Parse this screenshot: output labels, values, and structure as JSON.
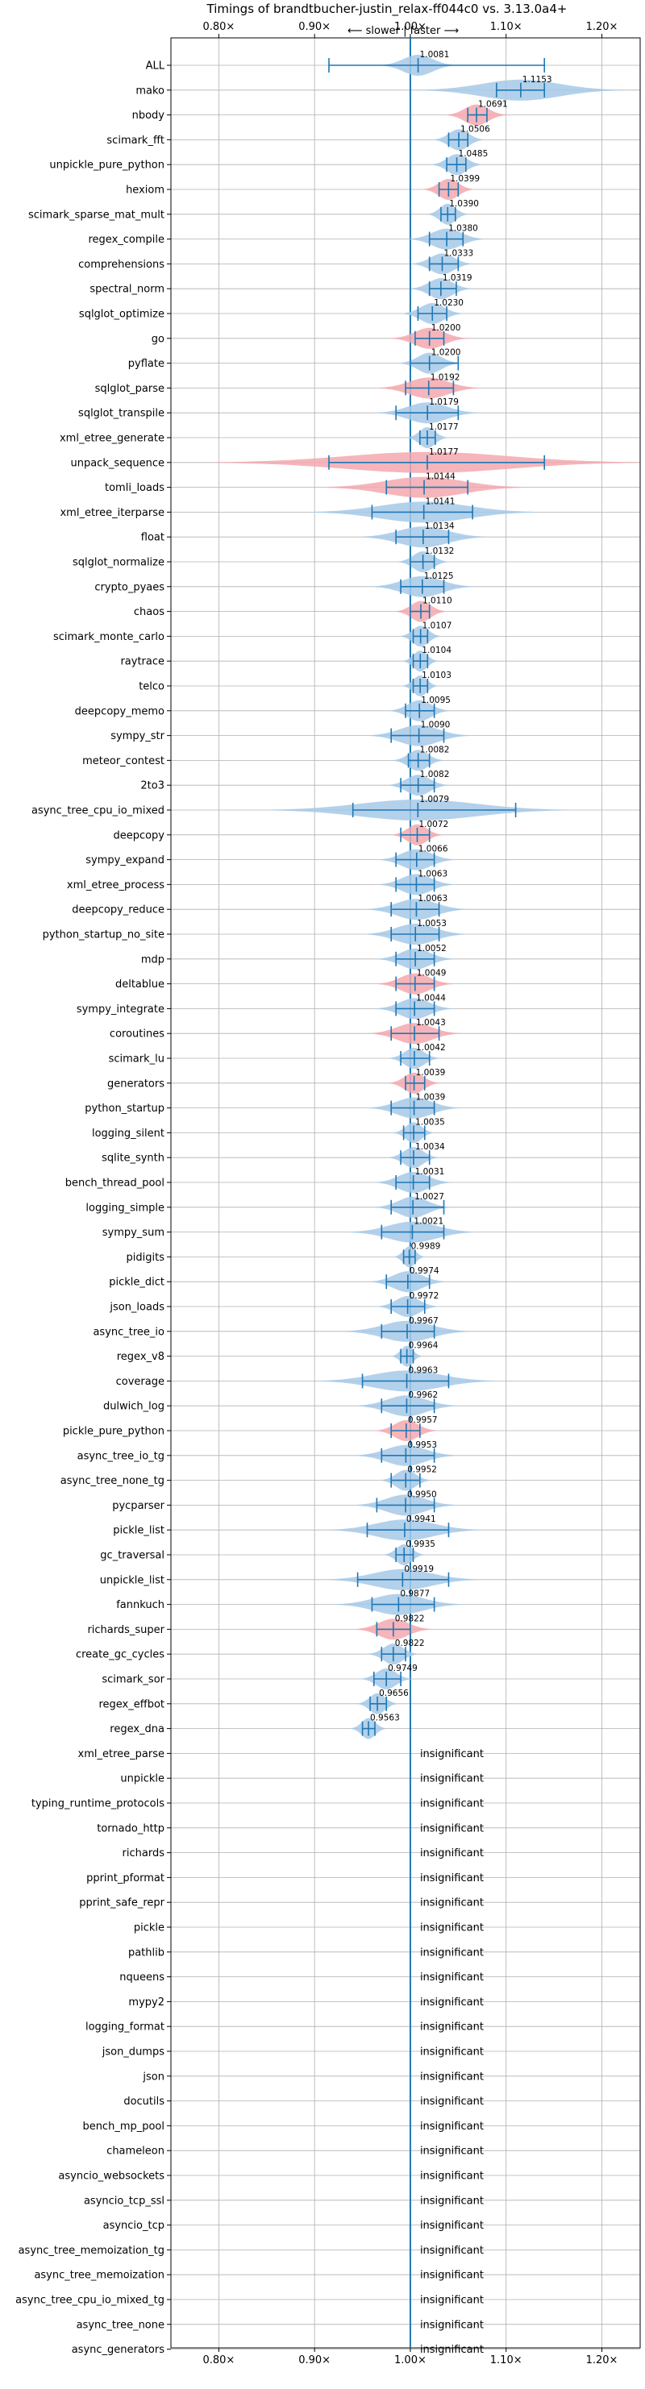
{
  "chart_data": {
    "type": "violin",
    "title": "Timings of brandtbucher-justin_relax-ff044c0 vs. 3.13.0a4+",
    "subtitle": "⟵ slower | faster ⟶",
    "xlim": [
      0.75,
      1.24
    ],
    "x_ticks": [
      0.8,
      0.9,
      1.0,
      1.1,
      1.2
    ],
    "x_tick_labels": [
      "0.80×",
      "0.90×",
      "1.00×",
      "1.10×",
      "1.20×"
    ],
    "reference_line": 1.0,
    "grid": true,
    "colors": {
      "faster": "#a6c9e7",
      "slower": "#f3a8ae",
      "line": "#1f77b4",
      "grid": "#b0b0b0"
    },
    "insignificant_label": "insignificant",
    "benchmarks": [
      {
        "name": "ALL",
        "label": "1.0081",
        "median": 1.0081,
        "min": 0.915,
        "max": 1.14,
        "spread": 0.015,
        "color": "blue"
      },
      {
        "name": "mako",
        "label": "1.1153",
        "median": 1.1153,
        "min": 1.09,
        "max": 1.14,
        "spread": 0.04,
        "color": "blue"
      },
      {
        "name": "nbody",
        "label": "1.0691",
        "median": 1.0691,
        "min": 1.06,
        "max": 1.08,
        "spread": 0.012,
        "color": "red"
      },
      {
        "name": "scimark_fft",
        "label": "1.0506",
        "median": 1.0506,
        "min": 1.04,
        "max": 1.06,
        "spread": 0.01,
        "color": "blue"
      },
      {
        "name": "unpickle_pure_python",
        "label": "1.0485",
        "median": 1.0485,
        "min": 1.038,
        "max": 1.058,
        "spread": 0.01,
        "color": "blue"
      },
      {
        "name": "hexiom",
        "label": "1.0399",
        "median": 1.0399,
        "min": 1.03,
        "max": 1.05,
        "spread": 0.01,
        "color": "red"
      },
      {
        "name": "scimark_sparse_mat_mult",
        "label": "1.0390",
        "median": 1.039,
        "min": 1.032,
        "max": 1.047,
        "spread": 0.008,
        "color": "blue"
      },
      {
        "name": "regex_compile",
        "label": "1.0380",
        "median": 1.038,
        "min": 1.02,
        "max": 1.055,
        "spread": 0.015,
        "color": "blue"
      },
      {
        "name": "comprehensions",
        "label": "1.0333",
        "median": 1.0333,
        "min": 1.02,
        "max": 1.05,
        "spread": 0.012,
        "color": "blue"
      },
      {
        "name": "spectral_norm",
        "label": "1.0319",
        "median": 1.0319,
        "min": 1.02,
        "max": 1.048,
        "spread": 0.012,
        "color": "blue"
      },
      {
        "name": "sqlglot_optimize",
        "label": "1.0230",
        "median": 1.023,
        "min": 1.008,
        "max": 1.038,
        "spread": 0.012,
        "color": "blue"
      },
      {
        "name": "go",
        "label": "1.0200",
        "median": 1.02,
        "min": 1.005,
        "max": 1.035,
        "spread": 0.015,
        "color": "red"
      },
      {
        "name": "pyflate",
        "label": "1.0200",
        "median": 1.02,
        "min": 1.0,
        "max": 1.05,
        "spread": 0.012,
        "color": "blue"
      },
      {
        "name": "sqlglot_parse",
        "label": "1.0192",
        "median": 1.0192,
        "min": 0.995,
        "max": 1.045,
        "spread": 0.02,
        "color": "red"
      },
      {
        "name": "sqlglot_transpile",
        "label": "1.0179",
        "median": 1.0179,
        "min": 0.985,
        "max": 1.05,
        "spread": 0.02,
        "color": "blue"
      },
      {
        "name": "xml_etree_generate",
        "label": "1.0177",
        "median": 1.0177,
        "min": 1.01,
        "max": 1.026,
        "spread": 0.008,
        "color": "blue"
      },
      {
        "name": "unpack_sequence",
        "label": "1.0177",
        "median": 1.0177,
        "min": 0.915,
        "max": 1.14,
        "spread": 0.085,
        "color": "red"
      },
      {
        "name": "tomli_loads",
        "label": "1.0144",
        "median": 1.0144,
        "min": 0.975,
        "max": 1.06,
        "spread": 0.04,
        "color": "red"
      },
      {
        "name": "xml_etree_iterparse",
        "label": "1.0141",
        "median": 1.0141,
        "min": 0.96,
        "max": 1.065,
        "spread": 0.045,
        "color": "blue"
      },
      {
        "name": "float",
        "label": "1.0134",
        "median": 1.0134,
        "min": 0.985,
        "max": 1.04,
        "spread": 0.025,
        "color": "blue"
      },
      {
        "name": "sqlglot_normalize",
        "label": "1.0132",
        "median": 1.0132,
        "min": 1.0,
        "max": 1.025,
        "spread": 0.01,
        "color": "blue"
      },
      {
        "name": "crypto_pyaes",
        "label": "1.0125",
        "median": 1.0125,
        "min": 0.99,
        "max": 1.035,
        "spread": 0.02,
        "color": "blue"
      },
      {
        "name": "chaos",
        "label": "1.0110",
        "median": 1.011,
        "min": 1.0,
        "max": 1.02,
        "spread": 0.01,
        "color": "red"
      },
      {
        "name": "scimark_monte_carlo",
        "label": "1.0107",
        "median": 1.0107,
        "min": 1.003,
        "max": 1.018,
        "spread": 0.008,
        "color": "blue"
      },
      {
        "name": "raytrace",
        "label": "1.0104",
        "median": 1.0104,
        "min": 1.003,
        "max": 1.018,
        "spread": 0.007,
        "color": "blue"
      },
      {
        "name": "telco",
        "label": "1.0103",
        "median": 1.0103,
        "min": 1.003,
        "max": 1.018,
        "spread": 0.007,
        "color": "blue"
      },
      {
        "name": "deepcopy_memo",
        "label": "1.0095",
        "median": 1.0095,
        "min": 0.995,
        "max": 1.025,
        "spread": 0.012,
        "color": "blue"
      },
      {
        "name": "sympy_str",
        "label": "1.0090",
        "median": 1.009,
        "min": 0.98,
        "max": 1.035,
        "spread": 0.02,
        "color": "blue"
      },
      {
        "name": "meteor_contest",
        "label": "1.0082",
        "median": 1.0082,
        "min": 0.998,
        "max": 1.02,
        "spread": 0.01,
        "color": "blue"
      },
      {
        "name": "2to3",
        "label": "1.0082",
        "median": 1.0082,
        "min": 0.99,
        "max": 1.025,
        "spread": 0.012,
        "color": "blue"
      },
      {
        "name": "async_tree_cpu_io_mixed",
        "label": "1.0079",
        "median": 1.0079,
        "min": 0.94,
        "max": 1.11,
        "spread": 0.06,
        "color": "blue"
      },
      {
        "name": "deepcopy",
        "label": "1.0072",
        "median": 1.0072,
        "min": 0.99,
        "max": 1.02,
        "spread": 0.01,
        "color": "red"
      },
      {
        "name": "sympy_expand",
        "label": "1.0066",
        "median": 1.0066,
        "min": 0.985,
        "max": 1.025,
        "spread": 0.015,
        "color": "blue"
      },
      {
        "name": "xml_etree_process",
        "label": "1.0063",
        "median": 1.0063,
        "min": 0.985,
        "max": 1.025,
        "spread": 0.015,
        "color": "blue"
      },
      {
        "name": "deepcopy_reduce",
        "label": "1.0063",
        "median": 1.0063,
        "min": 0.98,
        "max": 1.03,
        "spread": 0.02,
        "color": "blue"
      },
      {
        "name": "python_startup_no_site",
        "label": "1.0053",
        "median": 1.0053,
        "min": 0.98,
        "max": 1.03,
        "spread": 0.02,
        "color": "blue"
      },
      {
        "name": "mdp",
        "label": "1.0052",
        "median": 1.0052,
        "min": 0.985,
        "max": 1.025,
        "spread": 0.015,
        "color": "blue"
      },
      {
        "name": "deltablue",
        "label": "1.0049",
        "median": 1.0049,
        "min": 0.985,
        "max": 1.025,
        "spread": 0.015,
        "color": "red"
      },
      {
        "name": "sympy_integrate",
        "label": "1.0044",
        "median": 1.0044,
        "min": 0.985,
        "max": 1.025,
        "spread": 0.015,
        "color": "blue"
      },
      {
        "name": "coroutines",
        "label": "1.0043",
        "median": 1.0043,
        "min": 0.98,
        "max": 1.03,
        "spread": 0.018,
        "color": "red"
      },
      {
        "name": "scimark_lu",
        "label": "1.0042",
        "median": 1.0042,
        "min": 0.99,
        "max": 1.02,
        "spread": 0.01,
        "color": "blue"
      },
      {
        "name": "generators",
        "label": "1.0039",
        "median": 1.0039,
        "min": 0.995,
        "max": 1.015,
        "spread": 0.01,
        "color": "red"
      },
      {
        "name": "python_startup",
        "label": "1.0039",
        "median": 1.0039,
        "min": 0.98,
        "max": 1.025,
        "spread": 0.018,
        "color": "blue"
      },
      {
        "name": "logging_silent",
        "label": "1.0035",
        "median": 1.0035,
        "min": 0.993,
        "max": 1.015,
        "spread": 0.008,
        "color": "blue"
      },
      {
        "name": "sqlite_synth",
        "label": "1.0034",
        "median": 1.0034,
        "min": 0.99,
        "max": 1.02,
        "spread": 0.01,
        "color": "blue"
      },
      {
        "name": "bench_thread_pool",
        "label": "1.0031",
        "median": 1.0031,
        "min": 0.985,
        "max": 1.02,
        "spread": 0.015,
        "color": "blue"
      },
      {
        "name": "logging_simple",
        "label": "1.0027",
        "median": 1.0027,
        "min": 0.98,
        "max": 1.035,
        "spread": 0.015,
        "color": "blue"
      },
      {
        "name": "sympy_sum",
        "label": "1.0021",
        "median": 1.0021,
        "min": 0.97,
        "max": 1.035,
        "spread": 0.025,
        "color": "blue"
      },
      {
        "name": "pidigits",
        "label": "0.9989",
        "median": 0.9989,
        "min": 0.993,
        "max": 1.005,
        "spread": 0.006,
        "color": "blue"
      },
      {
        "name": "pickle_dict",
        "label": "0.9974",
        "median": 0.9974,
        "min": 0.975,
        "max": 1.02,
        "spread": 0.015,
        "color": "blue"
      },
      {
        "name": "json_loads",
        "label": "0.9972",
        "median": 0.9972,
        "min": 0.98,
        "max": 1.015,
        "spread": 0.012,
        "color": "blue"
      },
      {
        "name": "async_tree_io",
        "label": "0.9967",
        "median": 0.9967,
        "min": 0.97,
        "max": 1.025,
        "spread": 0.025,
        "color": "blue"
      },
      {
        "name": "regex_v8",
        "label": "0.9964",
        "median": 0.9964,
        "min": 0.99,
        "max": 1.003,
        "spread": 0.006,
        "color": "blue"
      },
      {
        "name": "coverage",
        "label": "0.9963",
        "median": 0.9963,
        "min": 0.95,
        "max": 1.04,
        "spread": 0.035,
        "color": "blue"
      },
      {
        "name": "dulwich_log",
        "label": "0.9962",
        "median": 0.9962,
        "min": 0.97,
        "max": 1.025,
        "spread": 0.02,
        "color": "blue"
      },
      {
        "name": "pickle_pure_python",
        "label": "0.9957",
        "median": 0.9957,
        "min": 0.98,
        "max": 1.01,
        "spread": 0.012,
        "color": "red"
      },
      {
        "name": "async_tree_io_tg",
        "label": "0.9953",
        "median": 0.9953,
        "min": 0.97,
        "max": 1.025,
        "spread": 0.02,
        "color": "blue"
      },
      {
        "name": "async_tree_none_tg",
        "label": "0.9952",
        "median": 0.9952,
        "min": 0.98,
        "max": 1.01,
        "spread": 0.01,
        "color": "blue"
      },
      {
        "name": "pycparser",
        "label": "0.9950",
        "median": 0.995,
        "min": 0.965,
        "max": 1.025,
        "spread": 0.02,
        "color": "blue"
      },
      {
        "name": "pickle_list",
        "label": "0.9941",
        "median": 0.9941,
        "min": 0.955,
        "max": 1.04,
        "spread": 0.03,
        "color": "blue"
      },
      {
        "name": "gc_traversal",
        "label": "0.9935",
        "median": 0.9935,
        "min": 0.985,
        "max": 1.003,
        "spread": 0.008,
        "color": "blue"
      },
      {
        "name": "unpickle_list",
        "label": "0.9919",
        "median": 0.9919,
        "min": 0.945,
        "max": 1.04,
        "spread": 0.03,
        "color": "blue"
      },
      {
        "name": "fannkuch",
        "label": "0.9877",
        "median": 0.9877,
        "min": 0.96,
        "max": 1.025,
        "spread": 0.025,
        "color": "blue"
      },
      {
        "name": "richards_super",
        "label": "0.9822",
        "median": 0.9822,
        "min": 0.965,
        "max": 1.0,
        "spread": 0.015,
        "color": "red"
      },
      {
        "name": "create_gc_cycles",
        "label": "0.9822",
        "median": 0.9822,
        "min": 0.97,
        "max": 0.995,
        "spread": 0.01,
        "color": "blue"
      },
      {
        "name": "scimark_sor",
        "label": "0.9749",
        "median": 0.9749,
        "min": 0.962,
        "max": 0.99,
        "spread": 0.01,
        "color": "blue"
      },
      {
        "name": "regex_effbot",
        "label": "0.9656",
        "median": 0.9656,
        "min": 0.958,
        "max": 0.975,
        "spread": 0.008,
        "color": "blue"
      },
      {
        "name": "regex_dna",
        "label": "0.9563",
        "median": 0.9563,
        "min": 0.95,
        "max": 0.963,
        "spread": 0.007,
        "color": "blue"
      },
      {
        "name": "xml_etree_parse",
        "insignificant": true
      },
      {
        "name": "unpickle",
        "insignificant": true
      },
      {
        "name": "typing_runtime_protocols",
        "insignificant": true
      },
      {
        "name": "tornado_http",
        "insignificant": true
      },
      {
        "name": "richards",
        "insignificant": true
      },
      {
        "name": "pprint_pformat",
        "insignificant": true
      },
      {
        "name": "pprint_safe_repr",
        "insignificant": true
      },
      {
        "name": "pickle",
        "insignificant": true
      },
      {
        "name": "pathlib",
        "insignificant": true
      },
      {
        "name": "nqueens",
        "insignificant": true
      },
      {
        "name": "mypy2",
        "insignificant": true
      },
      {
        "name": "logging_format",
        "insignificant": true
      },
      {
        "name": "json_dumps",
        "insignificant": true
      },
      {
        "name": "json",
        "insignificant": true
      },
      {
        "name": "docutils",
        "insignificant": true
      },
      {
        "name": "bench_mp_pool",
        "insignificant": true
      },
      {
        "name": "chameleon",
        "insignificant": true
      },
      {
        "name": "asyncio_websockets",
        "insignificant": true
      },
      {
        "name": "asyncio_tcp_ssl",
        "insignificant": true
      },
      {
        "name": "asyncio_tcp",
        "insignificant": true
      },
      {
        "name": "async_tree_memoization_tg",
        "insignificant": true
      },
      {
        "name": "async_tree_memoization",
        "insignificant": true
      },
      {
        "name": "async_tree_cpu_io_mixed_tg",
        "insignificant": true
      },
      {
        "name": "async_tree_none",
        "insignificant": true
      },
      {
        "name": "async_generators",
        "insignificant": true
      }
    ]
  }
}
